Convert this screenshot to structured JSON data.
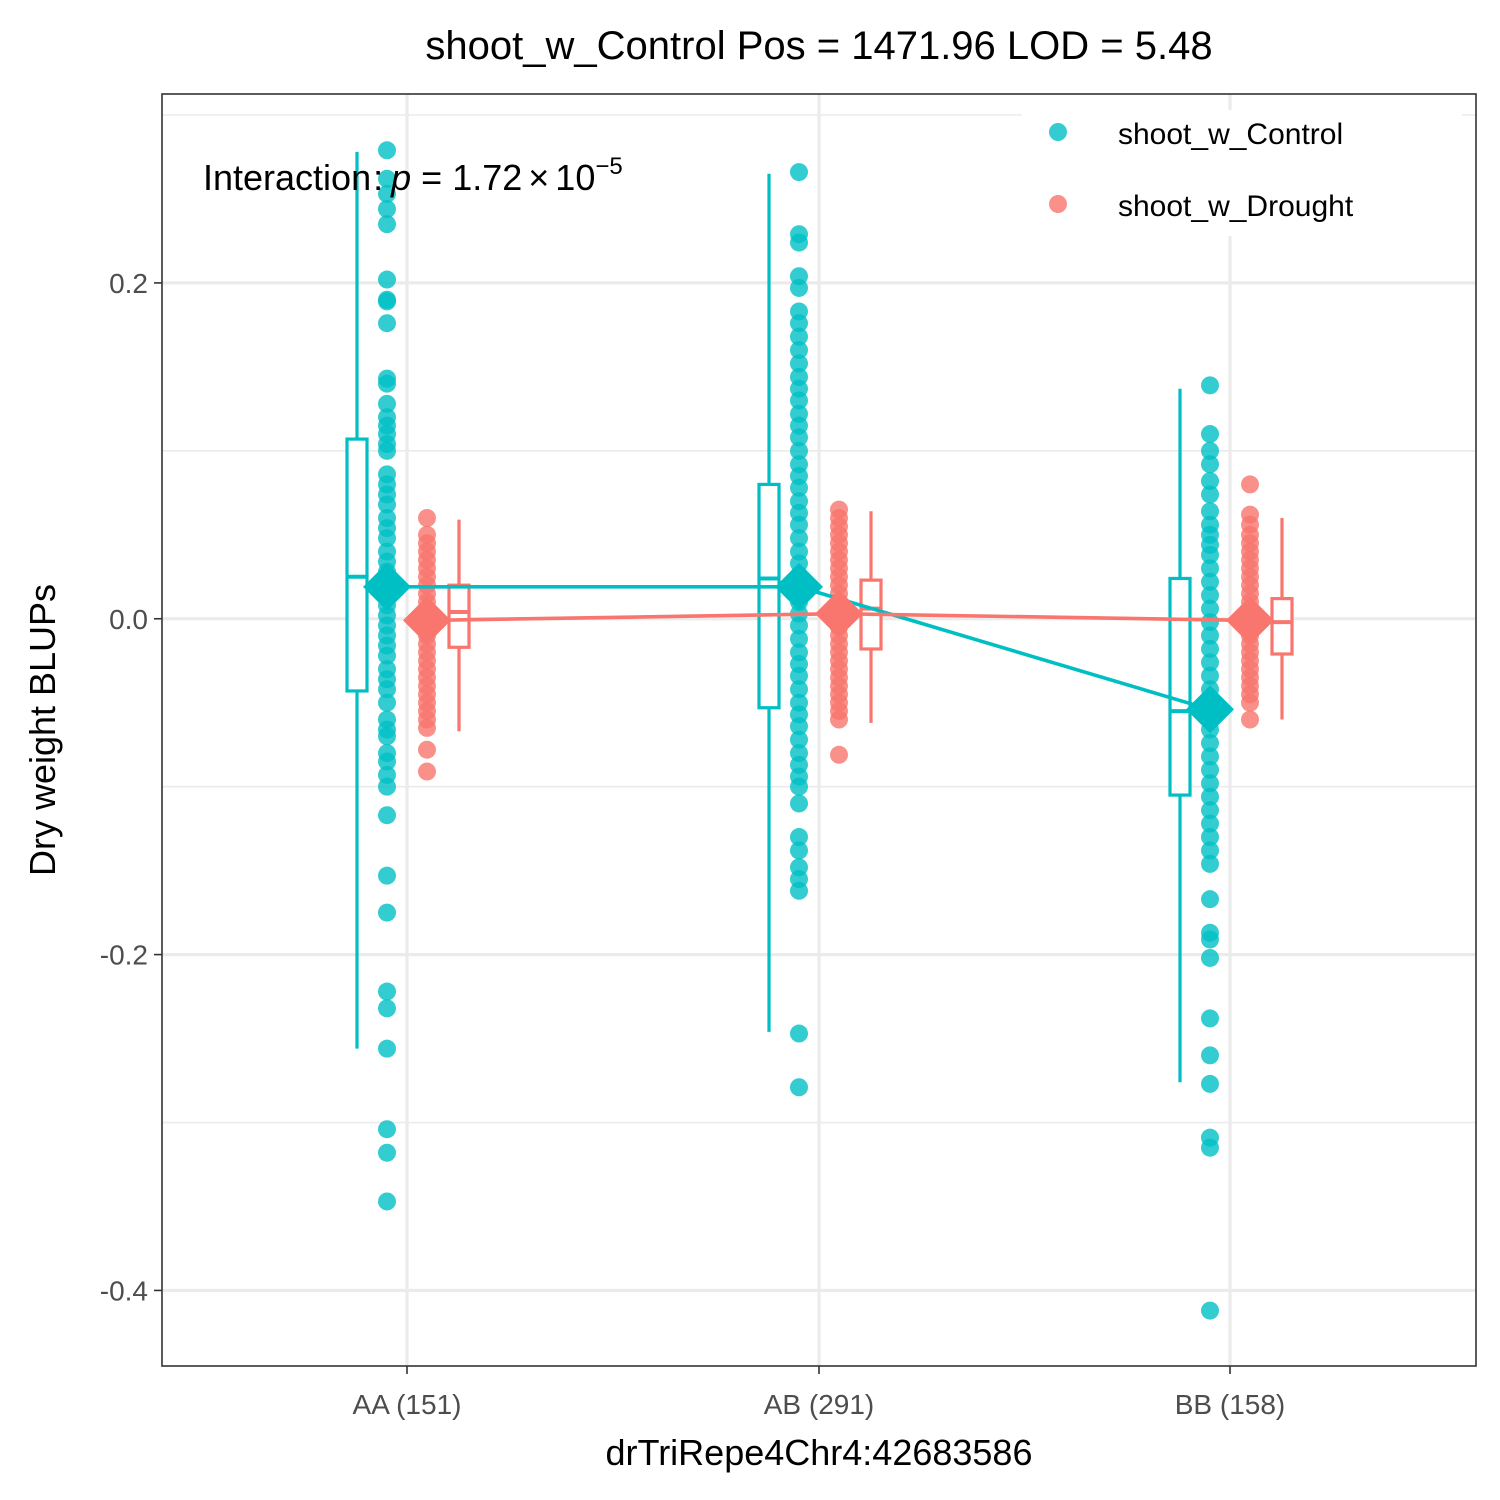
{
  "chart_data": {
    "type": "scatter",
    "title": "shoot_w_Control Pos = 1471.96 LOD = 5.48",
    "xlabel": "drTriRepe4Chr4:42683586",
    "ylabel": "Dry weight BLUPs",
    "categories": [
      "AA (151)",
      "AB (291)",
      "BB (158)"
    ],
    "ylim": [
      -0.445,
      0.3125
    ],
    "yticks": [
      0.2,
      0.0,
      -0.2,
      -0.4
    ],
    "ytick_labels": [
      "0.2",
      "0.0",
      "-0.2",
      "-0.4"
    ],
    "grid": true,
    "legend_position": "top-right",
    "annotation": {
      "prefix": "Interaction",
      "colon": ":",
      "p_symbol": "p",
      "equals": "=",
      "mantissa": "1.72",
      "times": "×",
      "base": "10",
      "exponent": "−5"
    },
    "colors": {
      "shoot_w_Control": "#00BFC4",
      "shoot_w_Drought": "#F8766D"
    },
    "series": [
      {
        "name": "shoot_w_Control",
        "color": "#00BFC4",
        "means": [
          0.019,
          0.019,
          -0.054
        ],
        "boxes": [
          {
            "whisker_low": -0.256,
            "q1": -0.043,
            "median": 0.025,
            "q3": 0.107,
            "whisker_high": 0.278
          },
          {
            "whisker_low": -0.246,
            "q1": -0.053,
            "median": 0.024,
            "q3": 0.08,
            "whisker_high": 0.265
          },
          {
            "whisker_low": -0.276,
            "q1": -0.105,
            "median": -0.055,
            "q3": 0.024,
            "whisker_high": 0.137
          }
        ],
        "points": [
          [
            0.279,
            0.262,
            0.253,
            0.244,
            0.235,
            0.202,
            0.19,
            0.189,
            0.176,
            0.143,
            0.14,
            0.128,
            0.12,
            0.115,
            0.11,
            0.104,
            0.1,
            0.086,
            0.08,
            0.074,
            0.068,
            0.06,
            0.054,
            0.048,
            0.04,
            0.034,
            0.028,
            0.02,
            0.014,
            0.008,
            0.002,
            -0.004,
            -0.01,
            -0.016,
            -0.022,
            -0.03,
            -0.036,
            -0.042,
            -0.05,
            -0.06,
            -0.066,
            -0.07,
            -0.08,
            -0.085,
            -0.093,
            -0.1,
            -0.117,
            -0.153,
            -0.175,
            -0.222,
            -0.232,
            -0.256,
            -0.304,
            -0.318,
            -0.347
          ],
          [
            0.266,
            0.229,
            0.224,
            0.204,
            0.197,
            0.183,
            0.176,
            0.168,
            0.16,
            0.152,
            0.144,
            0.137,
            0.13,
            0.122,
            0.115,
            0.108,
            0.1,
            0.092,
            0.085,
            0.078,
            0.07,
            0.063,
            0.056,
            0.048,
            0.04,
            0.033,
            0.026,
            0.018,
            0.01,
            0.003,
            -0.004,
            -0.012,
            -0.02,
            -0.027,
            -0.034,
            -0.042,
            -0.05,
            -0.057,
            -0.064,
            -0.072,
            -0.08,
            -0.087,
            -0.094,
            -0.1,
            -0.11,
            -0.13,
            -0.138,
            -0.148,
            -0.155,
            -0.162,
            -0.247,
            -0.279
          ],
          [
            0.139,
            0.11,
            0.1,
            0.092,
            0.082,
            0.074,
            0.064,
            0.056,
            0.05,
            0.044,
            0.038,
            0.03,
            0.022,
            0.014,
            0.006,
            -0.002,
            -0.01,
            -0.018,
            -0.026,
            -0.034,
            -0.042,
            -0.05,
            -0.058,
            -0.066,
            -0.074,
            -0.082,
            -0.09,
            -0.098,
            -0.106,
            -0.114,
            -0.122,
            -0.13,
            -0.138,
            -0.146,
            -0.167,
            -0.187,
            -0.191,
            -0.202,
            -0.238,
            -0.26,
            -0.277,
            -0.309,
            -0.315,
            -0.412
          ]
        ]
      },
      {
        "name": "shoot_w_Drought",
        "color": "#F8766D",
        "means": [
          -0.001,
          0.003,
          -0.001
        ],
        "boxes": [
          {
            "whisker_low": -0.067,
            "q1": -0.017,
            "median": 0.004,
            "q3": 0.02,
            "whisker_high": 0.059
          },
          {
            "whisker_low": -0.062,
            "q1": -0.018,
            "median": 0.006,
            "q3": 0.023,
            "whisker_high": 0.064
          },
          {
            "whisker_low": -0.06,
            "q1": -0.021,
            "median": -0.002,
            "q3": 0.012,
            "whisker_high": 0.06
          }
        ],
        "points": [
          [
            0.06,
            0.05,
            0.045,
            0.04,
            0.035,
            0.03,
            0.025,
            0.02,
            0.015,
            0.01,
            0.005,
            0.0,
            -0.005,
            -0.01,
            -0.015,
            -0.02,
            -0.025,
            -0.03,
            -0.035,
            -0.04,
            -0.045,
            -0.05,
            -0.055,
            -0.06,
            -0.065,
            -0.078,
            -0.091
          ],
          [
            0.065,
            0.06,
            0.055,
            0.05,
            0.045,
            0.04,
            0.035,
            0.03,
            0.025,
            0.02,
            0.015,
            0.01,
            0.005,
            0.0,
            -0.005,
            -0.01,
            -0.015,
            -0.02,
            -0.025,
            -0.03,
            -0.035,
            -0.04,
            -0.045,
            -0.05,
            -0.055,
            -0.06,
            -0.081
          ],
          [
            0.08,
            0.062,
            0.056,
            0.05,
            0.045,
            0.04,
            0.035,
            0.03,
            0.025,
            0.02,
            0.015,
            0.01,
            0.005,
            0.0,
            -0.005,
            -0.01,
            -0.015,
            -0.02,
            -0.025,
            -0.03,
            -0.035,
            -0.04,
            -0.045,
            -0.05,
            -0.06
          ]
        ]
      }
    ]
  }
}
